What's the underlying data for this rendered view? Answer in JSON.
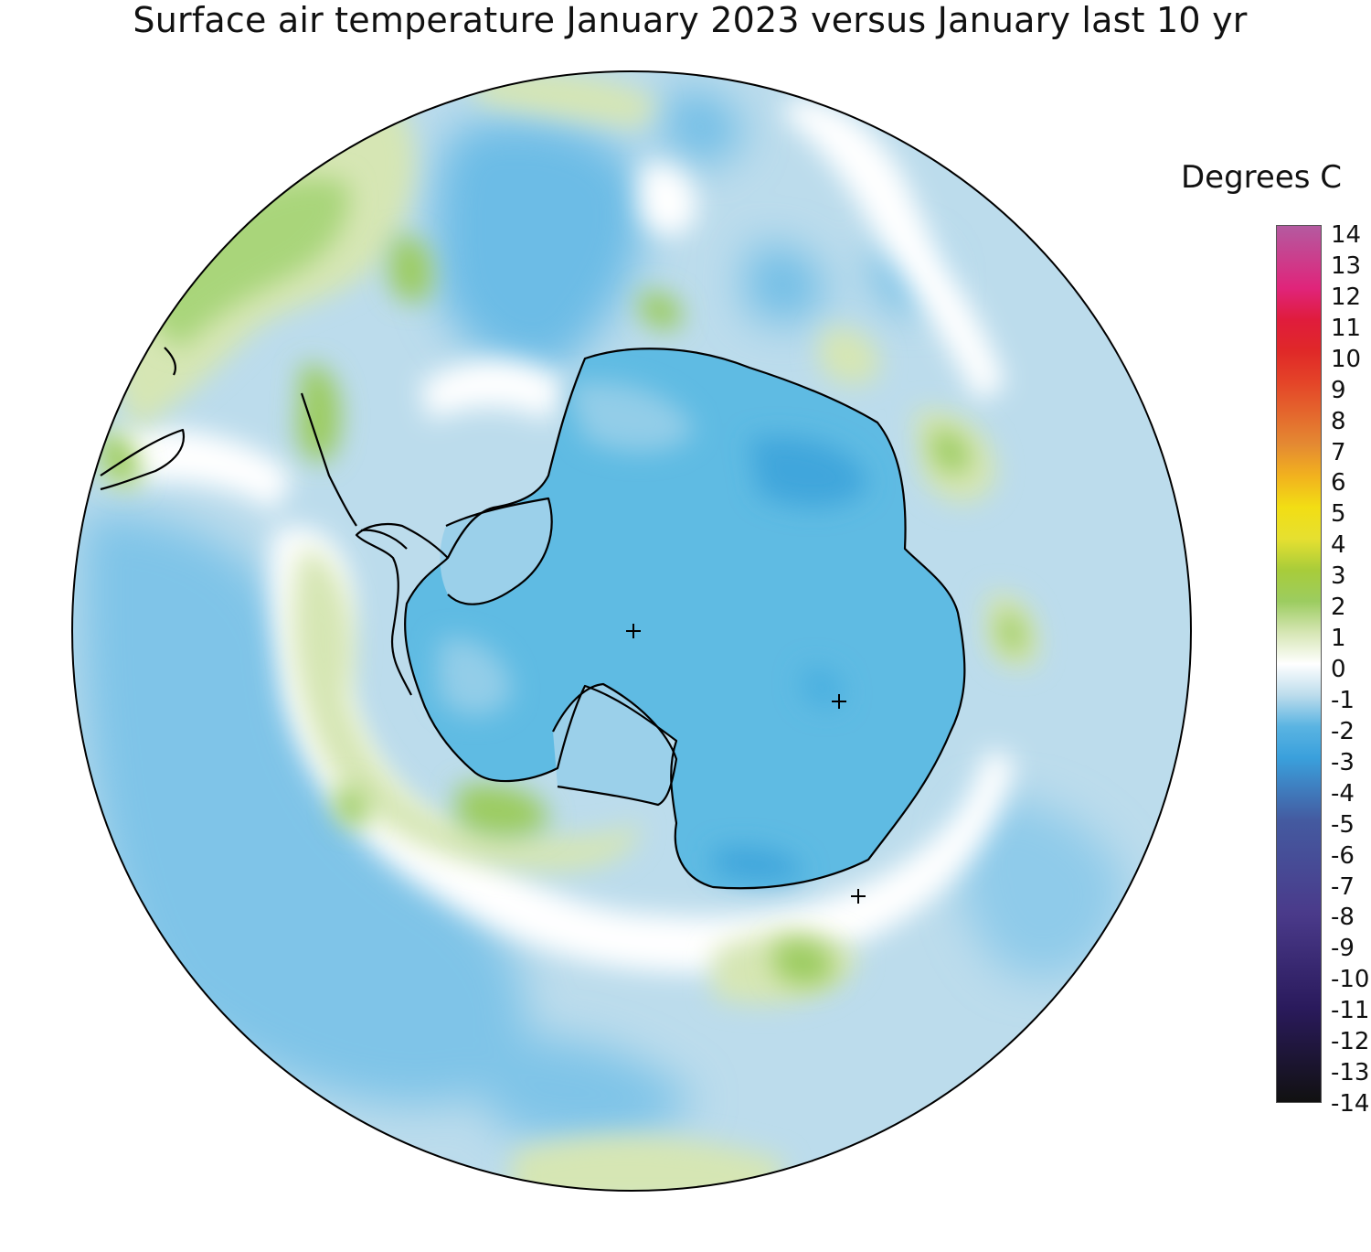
{
  "title": "Surface air temperature January 2023 versus January last 10 yr",
  "colorbar": {
    "title": "Degrees C",
    "ticks": [
      "14",
      "13",
      "12",
      "11",
      "10",
      "9",
      "8",
      "7",
      "6",
      "5",
      "4",
      "3",
      "2",
      "1",
      "0",
      "-1",
      "-2",
      "-3",
      "-4",
      "-5",
      "-6",
      "-7",
      "-8",
      "-9",
      "-10",
      "-11",
      "-12",
      "-13",
      "-14"
    ],
    "range": [
      -14,
      14
    ],
    "colors": {
      "neg14": "#111111",
      "neg11": "#2a1a5c",
      "neg8": "#4a3a8a",
      "neg5": "#445aa0",
      "neg3": "#3aa0dc",
      "neg2": "#5ab4e2",
      "neg1": "#bcdcec",
      "zero": "#ffffff",
      "pos1": "#d6e6b4",
      "pos2": "#9ccc60",
      "pos3": "#a8cc3a",
      "pos4": "#e6e030",
      "pos5": "#f2de14",
      "pos6": "#f2b21e",
      "pos7": "#e48a32",
      "pos9": "#e44428",
      "pos10": "#e02828",
      "pos11": "#e01c3c",
      "pos12": "#e0247a",
      "pos14": "#b45aa0"
    }
  },
  "map": {
    "projection": "south polar stereographic",
    "region": "Antarctica and Southern Ocean",
    "colors": {
      "ocean_base": "#bcdcec",
      "continent": "#5fbbe3",
      "coastline": "#000000",
      "rim": "#000000"
    },
    "markers": [
      "+",
      "+",
      "+"
    ]
  }
}
